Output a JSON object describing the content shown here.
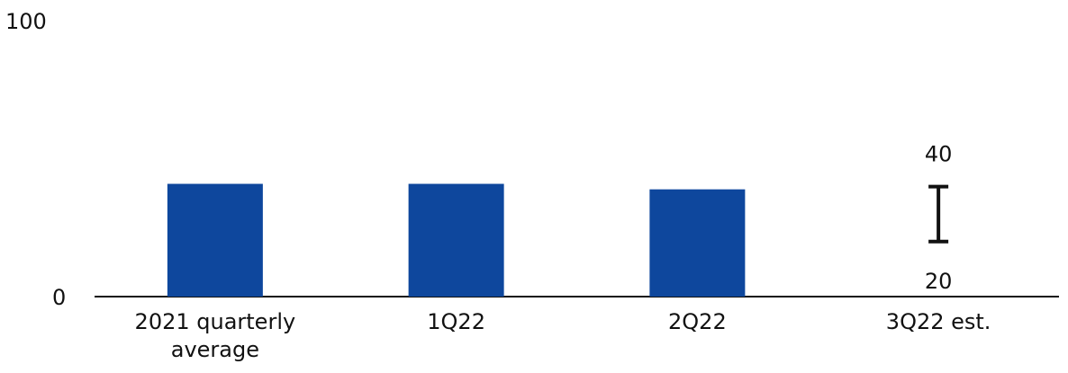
{
  "chart_data": {
    "type": "bar",
    "categories": [
      "2021 quarterly average",
      "1Q22",
      "2Q22",
      "3Q22 est."
    ],
    "category_label_lines": [
      [
        "2021 quarterly",
        "average"
      ],
      [
        "1Q22"
      ],
      [
        "2Q22"
      ],
      [
        "3Q22 est."
      ]
    ],
    "values": [
      41,
      41,
      39,
      null
    ],
    "estimate_range": {
      "category": "3Q22 est.",
      "low": 20,
      "high": 40
    },
    "ylim": [
      0,
      100
    ],
    "yticks": [
      "0",
      "100"
    ],
    "range_labels": {
      "high": "40",
      "low": "20"
    },
    "title": "",
    "xlabel": "",
    "ylabel": "",
    "grid": false,
    "colors": {
      "bar": "#0E479D",
      "axis": "#111111",
      "text": "#111111"
    }
  }
}
